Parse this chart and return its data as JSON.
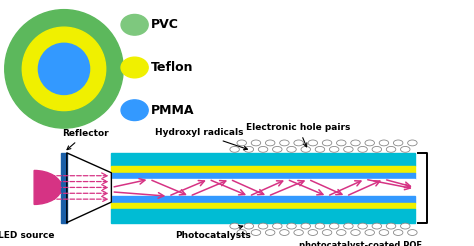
{
  "pvc_color": "#5cb85c",
  "teflon_color": "#f0f000",
  "pmma_color": "#3399ff",
  "led_color": "#d63384",
  "fiber_cyan_color": "#00bcd4",
  "fiber_yellow_color": "#f0f000",
  "fiber_blue_color": "#3399ff",
  "arrow_color": "#d63384",
  "bg_color": "#ffffff",
  "legend_colors": [
    "#7ec87e",
    "#f0f000",
    "#3399ff"
  ],
  "legend_labels": [
    "PVC",
    "Teflon",
    "PMMA"
  ],
  "label_reflector": "Reflector",
  "label_led": "LED source",
  "label_hydroxyl": "Hydroxyl radicals",
  "label_electronic": "Electronic hole pairs",
  "label_photocatalysts": "Photocatalysts",
  "label_pof": "photocatalyst-coated POF"
}
